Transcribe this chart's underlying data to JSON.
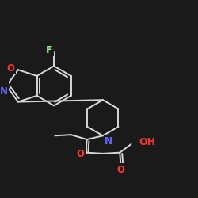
{
  "background_color": "#1a1a1a",
  "bond_color": "#d8d8d8",
  "atom_colors": {
    "F": "#90ee90",
    "O": "#ff3333",
    "N": "#6666ff",
    "C": "#d8d8d8"
  },
  "bond_width": 1.4,
  "font_size": 8.5
}
